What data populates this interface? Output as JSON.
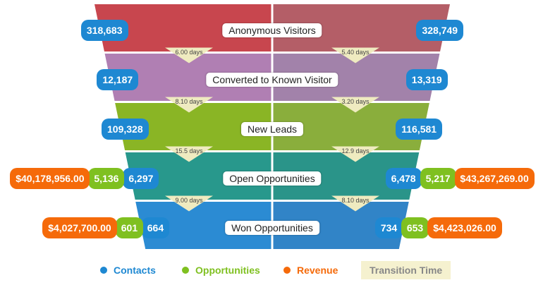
{
  "chart_data": {
    "type": "funnel",
    "title": "",
    "stages": [
      {
        "name": "Anonymous Visitors",
        "left": {
          "contacts": "318,683"
        },
        "right": {
          "contacts": "328,749"
        }
      },
      {
        "name": "Converted to Known Visitor",
        "left": {
          "contacts": "12,187"
        },
        "right": {
          "contacts": "13,319"
        }
      },
      {
        "name": "New Leads",
        "left": {
          "contacts": "109,328"
        },
        "right": {
          "contacts": "116,581"
        }
      },
      {
        "name": "Open Opportunities",
        "left": {
          "contacts": "6,297",
          "opportunities": "5,136",
          "revenue": "$40,178,956.00"
        },
        "right": {
          "contacts": "6,478",
          "opportunities": "5,217",
          "revenue": "$43,267,269.00"
        }
      },
      {
        "name": "Won Opportunities",
        "left": {
          "contacts": "664",
          "opportunities": "601",
          "revenue": "$4,027,700.00"
        },
        "right": {
          "contacts": "734",
          "opportunities": "653",
          "revenue": "$4,423,026.00"
        }
      }
    ],
    "transitions": [
      {
        "left": "6.00 days",
        "right": "5.40 days"
      },
      {
        "left": "8.10 days",
        "right": "3.20 days"
      },
      {
        "left": "15.5 days",
        "right": "12.9 days"
      },
      {
        "left": "9.00 days",
        "right": "8.10 days"
      }
    ],
    "legend": [
      {
        "label": "Contacts",
        "color": "#1e88d2"
      },
      {
        "label": "Opportunities",
        "color": "#7fc020"
      },
      {
        "label": "Revenue",
        "color": "#f56a0a"
      },
      {
        "label": "Transition Time",
        "color": "#f5f1cf"
      }
    ]
  },
  "colors": {
    "band_left": [
      "#c8464e",
      "#b07fb3",
      "#8ab525",
      "#28988c",
      "#2b8bd3"
    ],
    "band_right": [
      "#b45e67",
      "#a282aa",
      "#8aae3c",
      "#2a9489",
      "#3184c7"
    ],
    "transition": "#efebc0"
  }
}
